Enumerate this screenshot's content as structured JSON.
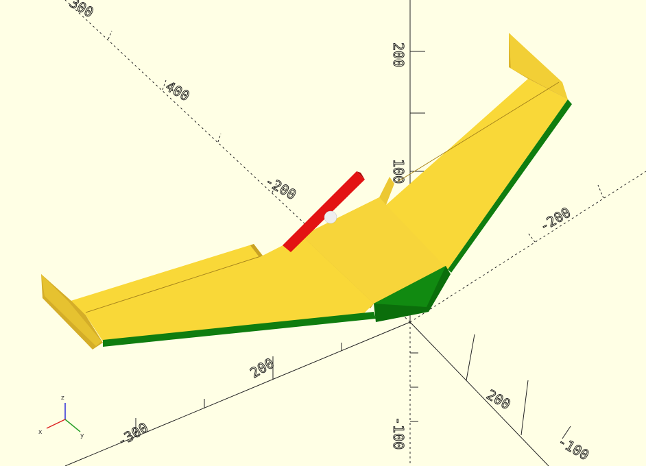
{
  "scene": {
    "background": "#ffffe5",
    "model_colors": {
      "wing_top": "#f9d838",
      "wing_side": "#dcb52a",
      "wing_trailing": "#c9a224",
      "leading_edge": "#0f7d0f",
      "nose": "#0b6e0b",
      "spar": "#e31313",
      "sphere": "#eeeeee"
    }
  },
  "axis_labels": {
    "x_neg_100": "-100",
    "x_neg_200": "-200",
    "x_neg_300": "-300",
    "x_pos_200": "200",
    "y_pos_200": "200",
    "y_pos_300": "300",
    "y_pos_400": "400",
    "y_neg_200": "-200",
    "z_pos_200": "200",
    "z_pos_100": "100",
    "z_neg_100": "-100"
  },
  "gizmo": {
    "x": "x",
    "y": "y",
    "z": "z"
  }
}
